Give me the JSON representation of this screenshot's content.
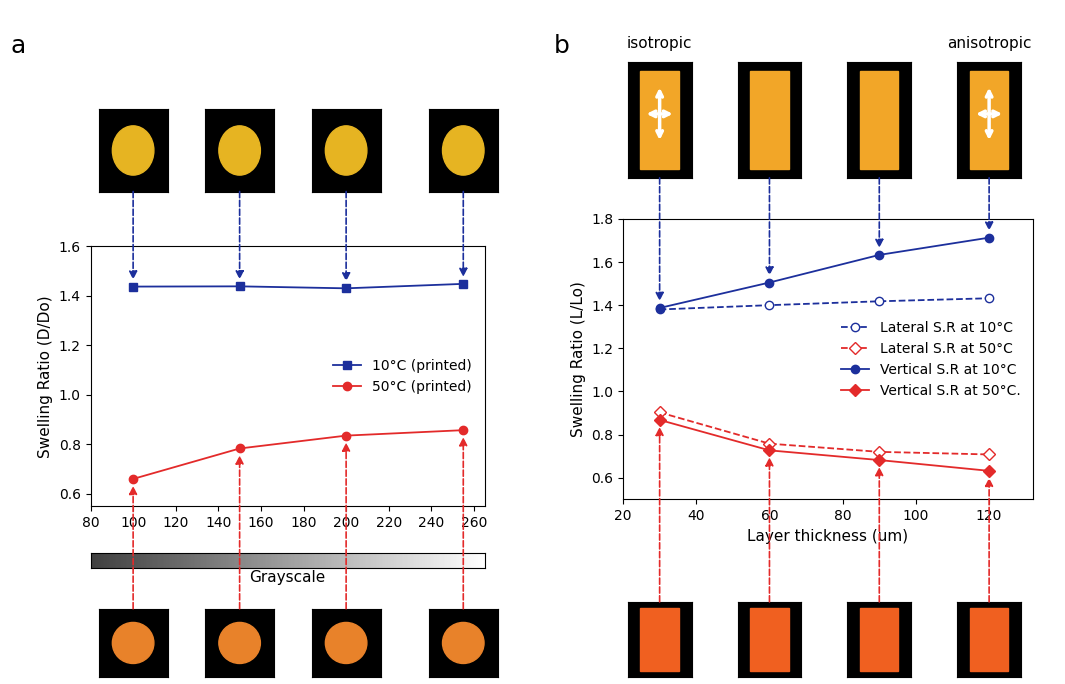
{
  "chart_data": [
    {
      "type": "line",
      "title": "a",
      "x": [
        100,
        150,
        200,
        255
      ],
      "series": [
        {
          "name": "10°C (printed)",
          "color": "#1c2f9c",
          "marker": "square",
          "line_style": "solid",
          "values": [
            1.437,
            1.438,
            1.43,
            1.448
          ]
        },
        {
          "name": "50°C (printed)",
          "color": "#e32a2a",
          "marker": "circle",
          "line_style": "solid",
          "values": [
            0.66,
            0.783,
            0.835,
            0.857
          ]
        }
      ],
      "x_label": "Grayscale",
      "y_label": "Swelling Ratio (D/Do)",
      "xlim": [
        80,
        265
      ],
      "xticks": [
        80,
        100,
        120,
        140,
        160,
        180,
        200,
        220,
        240,
        260
      ],
      "ylim": [
        0.55,
        1.6
      ],
      "yticks": [
        0.6,
        0.8,
        1.0,
        1.2,
        1.4,
        1.6
      ],
      "legend": "center right",
      "grid": false
    },
    {
      "type": "line",
      "title": "b",
      "x": [
        30,
        60,
        90,
        120
      ],
      "series": [
        {
          "name": "Lateral S.R at 10°C",
          "color": "#1c2f9c",
          "marker": "open circle",
          "line_style": "dashed",
          "values": [
            1.38,
            1.4,
            1.418,
            1.432
          ]
        },
        {
          "name": "Lateral S.R at 50°C",
          "color": "#e32a2a",
          "marker": "open diamond",
          "line_style": "dashed",
          "values": [
            0.903,
            0.758,
            0.72,
            0.708
          ]
        },
        {
          "name": "Vertical S.R at 10°C",
          "color": "#1c2f9c",
          "marker": "circle",
          "line_style": "solid",
          "values": [
            1.387,
            1.505,
            1.633,
            1.713
          ]
        },
        {
          "name": "Vertical S.R at 50°C.",
          "color": "#e32a2a",
          "marker": "diamond",
          "line_style": "solid",
          "values": [
            0.868,
            0.727,
            0.682,
            0.632
          ]
        }
      ],
      "x_label": "Layer thickness (um)",
      "y_label": "Swelling Ratio (L/Lo)",
      "xlim": [
        20,
        132
      ],
      "xticks": [
        20,
        40,
        60,
        80,
        100,
        120
      ],
      "ylim": [
        0.5,
        1.8
      ],
      "yticks": [
        0.6,
        0.8,
        1.0,
        1.2,
        1.4,
        1.6,
        1.8
      ],
      "annotations": [
        "isotropic",
        "anisotropic"
      ],
      "legend": "center right",
      "grid": false
    }
  ]
}
